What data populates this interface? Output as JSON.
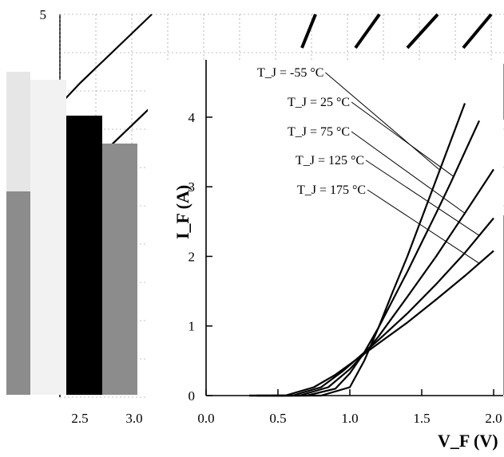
{
  "chart_data": [
    {
      "type": "line",
      "title": "",
      "xlabel": "",
      "ylabel": "",
      "xlim": [
        2.0,
        3.0
      ],
      "ylim": [
        0,
        5
      ],
      "x_ticks": [
        "2.5",
        "3.0"
      ],
      "y_ticks": [
        "5"
      ],
      "grid": true,
      "colors": {
        "line": "#000000",
        "grid": "#888888"
      },
      "series": [
        {
          "x": [
            2.0,
            2.5,
            3.0
          ],
          "y": [
            3.1,
            4.1,
            5.0
          ]
        },
        {
          "x": [
            2.0,
            2.5,
            3.0
          ],
          "y": [
            2.1,
            2.9,
            3.8
          ]
        }
      ]
    },
    {
      "type": "line",
      "title": "",
      "xlabel": "V_F (V)",
      "ylabel": "I_F (A)",
      "xlim": [
        0.0,
        2.0
      ],
      "ylim": [
        0,
        4.4
      ],
      "x_ticks": [
        "0.0",
        "0.5",
        "1.0",
        "1.5",
        "2.0"
      ],
      "y_ticks": [
        "0",
        "1",
        "2",
        "3",
        "4"
      ],
      "grid": false,
      "legend_position": "top-right",
      "colors": {
        "line": "#000000",
        "axis": "#000000"
      },
      "series": [
        {
          "name": "T_J = -55 °C",
          "x": [
            0.45,
            0.8,
            1.0,
            1.1,
            1.2,
            1.3,
            1.4,
            1.5,
            1.6,
            1.7,
            1.8
          ],
          "y": [
            0.0,
            0.0,
            0.12,
            0.5,
            0.98,
            1.5,
            2.0,
            2.55,
            3.1,
            3.65,
            4.2
          ]
        },
        {
          "name": "T_J = 25 °C",
          "x": [
            0.35,
            0.7,
            0.9,
            1.0,
            1.1,
            1.2,
            1.3,
            1.4,
            1.5,
            1.6,
            1.7,
            1.8,
            1.9
          ],
          "y": [
            0.0,
            0.0,
            0.1,
            0.32,
            0.62,
            0.98,
            1.38,
            1.78,
            2.2,
            2.62,
            3.05,
            3.5,
            3.95
          ]
        },
        {
          "name": "T_J = 75 °C",
          "x": [
            0.35,
            0.65,
            0.85,
            1.0,
            1.1,
            1.2,
            1.4,
            1.6,
            1.8,
            2.0
          ],
          "y": [
            0.0,
            0.0,
            0.12,
            0.38,
            0.6,
            0.85,
            1.42,
            2.0,
            2.62,
            3.25
          ]
        },
        {
          "name": "T_J = 125 °C",
          "x": [
            0.3,
            0.6,
            0.8,
            0.95,
            1.1,
            1.2,
            1.4,
            1.6,
            1.8,
            2.0
          ],
          "y": [
            0.0,
            0.0,
            0.12,
            0.35,
            0.62,
            0.8,
            1.18,
            1.6,
            2.05,
            2.55
          ]
        },
        {
          "name": "T_J = 175 °C",
          "x": [
            0.3,
            0.55,
            0.75,
            0.9,
            1.1,
            1.2,
            1.4,
            1.6,
            1.8,
            2.0
          ],
          "y": [
            0.0,
            0.0,
            0.12,
            0.3,
            0.6,
            0.75,
            1.05,
            1.38,
            1.72,
            2.08
          ]
        }
      ]
    }
  ]
}
